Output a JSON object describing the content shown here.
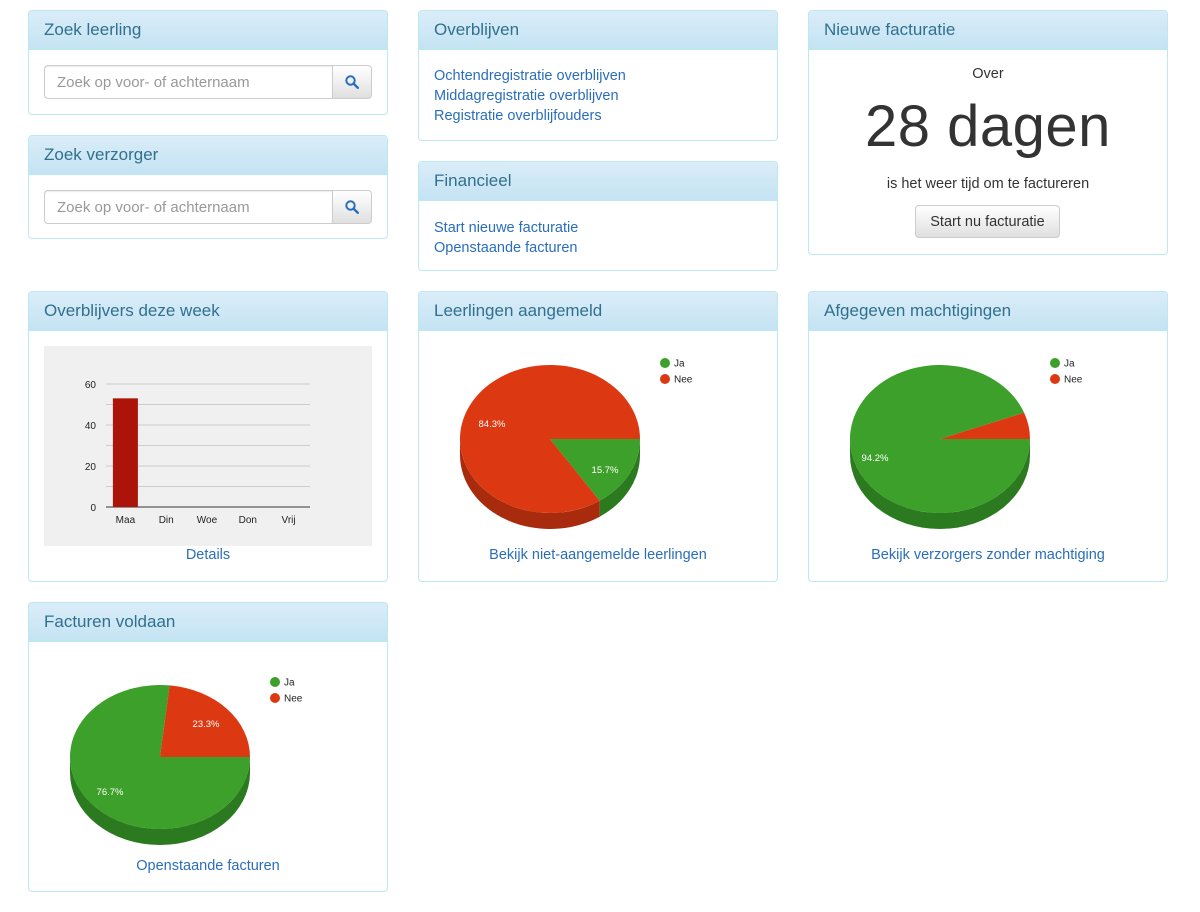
{
  "search_student": {
    "title": "Zoek leerling",
    "placeholder": "Zoek op voor- of achternaam"
  },
  "search_guardian": {
    "title": "Zoek verzorger",
    "placeholder": "Zoek op voor- of achternaam"
  },
  "overblijven": {
    "title": "Overblijven",
    "links": [
      "Ochtendregistratie overblijven",
      "Middagregistratie overblijven",
      "Registratie overblijfouders"
    ]
  },
  "financieel": {
    "title": "Financieel",
    "links": [
      "Start nieuwe facturatie",
      "Openstaande facturen"
    ]
  },
  "facturatie": {
    "title": "Nieuwe facturatie",
    "over": "Over",
    "days": "28 dagen",
    "subtitle": "is het weer tijd om te factureren",
    "button": "Start nu facturatie"
  },
  "week_panel": {
    "title": "Overblijvers deze week",
    "link": "Details"
  },
  "students_panel": {
    "title": "Leerlingen aangemeld",
    "link": "Bekijk niet-aangemelde leerlingen"
  },
  "mandates_panel": {
    "title": "Afgegeven machtigingen",
    "link": "Bekijk verzorgers zonder machtiging"
  },
  "invoices_panel": {
    "title": "Facturen voldaan",
    "link": "Openstaande facturen"
  },
  "colors": {
    "ja": "#3ca02b",
    "ja_dark": "#2b7a1f",
    "nee": "#dc3912",
    "nee_dark": "#a82b0e",
    "bar": "#ad1409"
  },
  "chart_data": [
    {
      "type": "bar",
      "title": "",
      "categories": [
        "Maa",
        "Din",
        "Woe",
        "Don",
        "Vrij"
      ],
      "values": [
        53,
        0,
        0,
        0,
        0
      ],
      "ylim": [
        0,
        60
      ],
      "yticks": [
        "0",
        "20",
        "40",
        "60"
      ],
      "grid": true
    },
    {
      "type": "pie",
      "labels": [
        "Ja",
        "Nee"
      ],
      "values": [
        15.7,
        84.3
      ],
      "value_labels": [
        "15.7%",
        "84.3%"
      ],
      "legend": "top-right"
    },
    {
      "type": "pie",
      "labels": [
        "Ja",
        "Nee"
      ],
      "values": [
        94.2,
        5.8
      ],
      "value_labels": [
        "94.2%",
        ""
      ],
      "legend": "top-right"
    },
    {
      "type": "pie",
      "labels": [
        "Ja",
        "Nee"
      ],
      "values": [
        76.7,
        23.3
      ],
      "value_labels": [
        "76.7%",
        "23.3%"
      ],
      "legend": "top-right"
    }
  ]
}
